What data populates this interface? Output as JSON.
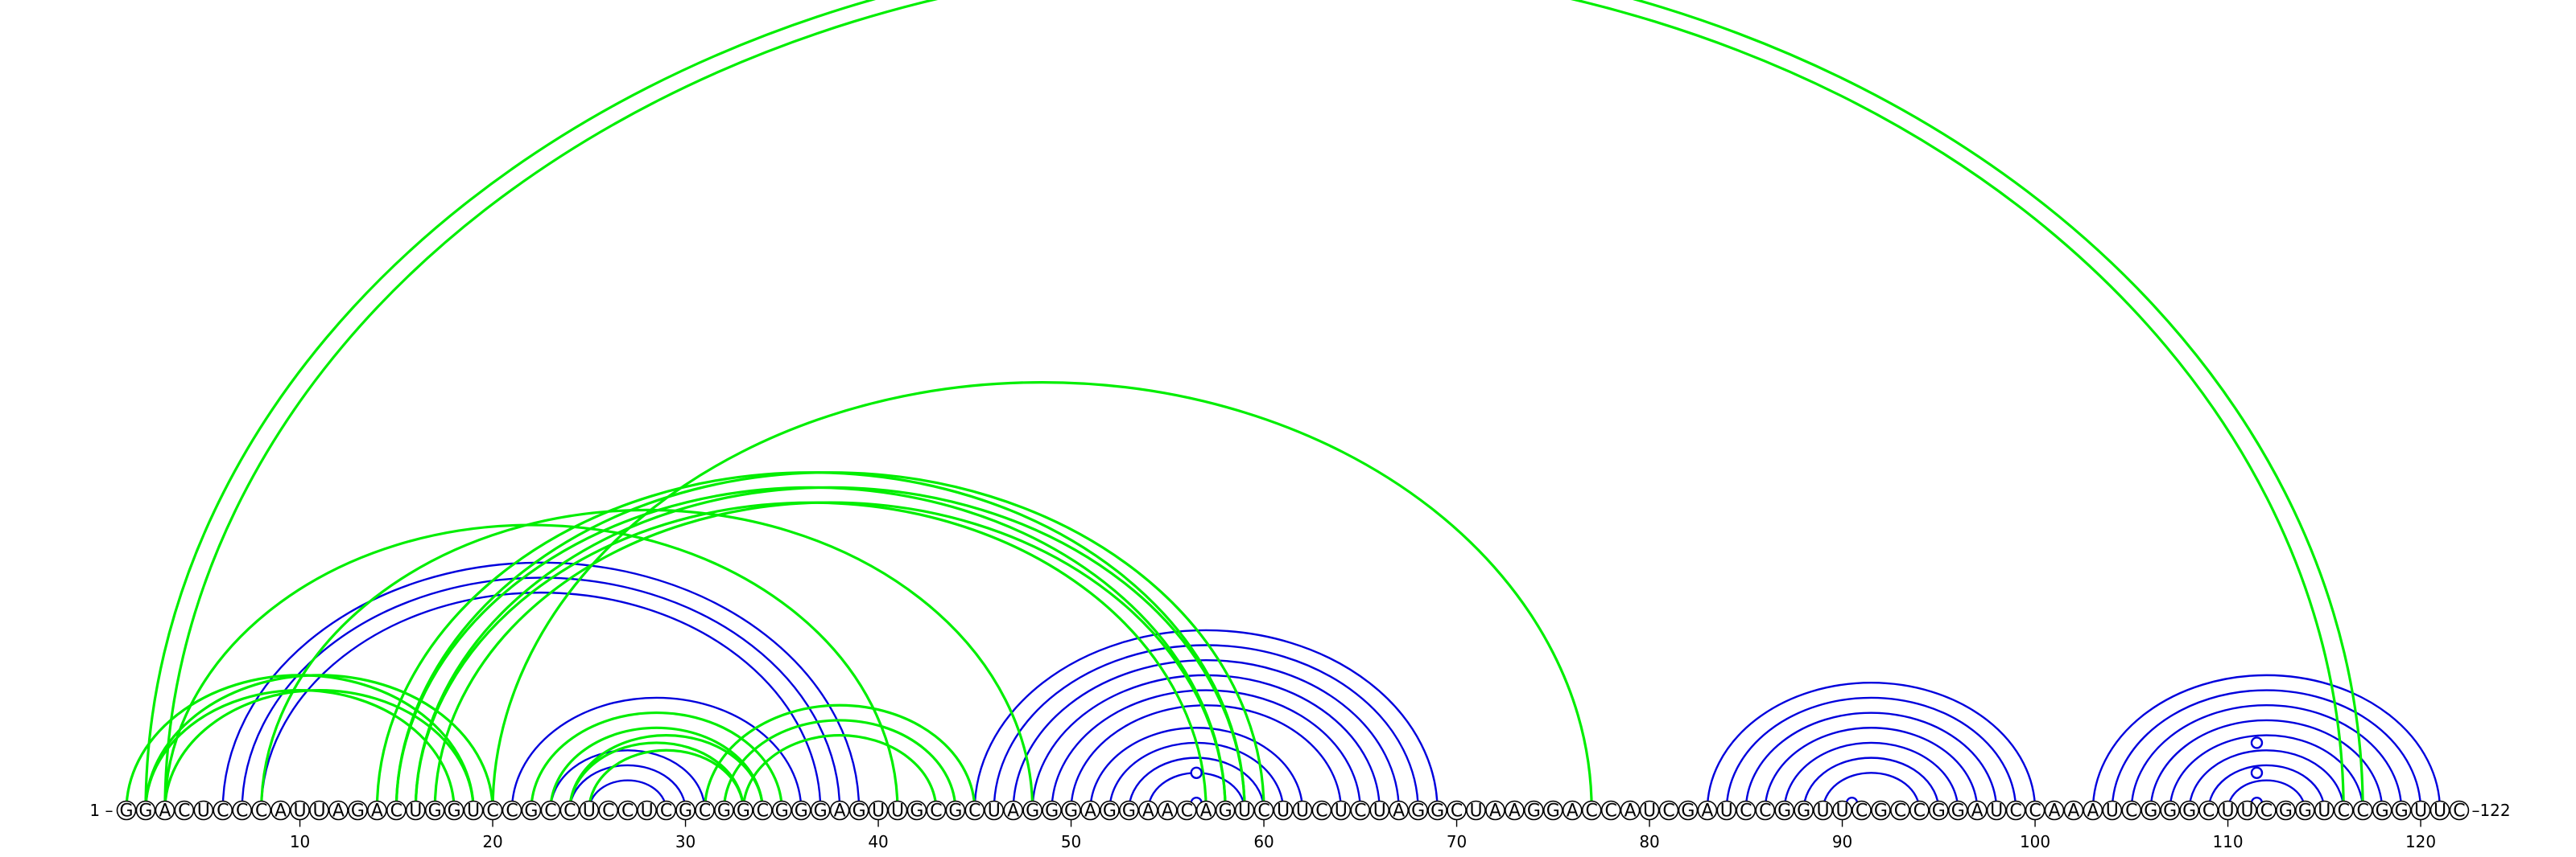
{
  "sequence": "GGACUCCCAUUAGACUGGUCCGCCUCCUCGCGGCGGGAGUUGCGCUAGGGAGGAACAGUCUUCUCUAGGCUAAGGACCAUCGAUCCGGUUCGCCGGAUCCAAAUCGGGCUUCGGUCCGGUUC",
  "labels": {
    "start": "1 –",
    "end": "–122"
  },
  "ticks": [
    "10",
    "20",
    "30",
    "40",
    "50",
    "60",
    "70",
    "80",
    "90",
    "100",
    "110",
    "120"
  ],
  "colors": {
    "secondary": "#0000dd",
    "tertiary": "#00ee00"
  },
  "helices": [
    {
      "type": "blue",
      "i": 6,
      "j": 39,
      "n": 3
    },
    {
      "type": "blue",
      "i": 21,
      "j": 36,
      "n": 3
    },
    {
      "type": "blue",
      "i": 23,
      "j": 31,
      "n": 3
    },
    {
      "type": "blue",
      "i": 45,
      "j": 69,
      "n": 6
    },
    {
      "type": "blue",
      "i": 51,
      "j": 62,
      "n": 4
    },
    {
      "type": "blue",
      "i": 83,
      "j": 100,
      "n": 7
    },
    {
      "type": "blue",
      "i": 103,
      "j": 121,
      "n": 8
    },
    {
      "type": "green",
      "i": 2,
      "j": 117,
      "n": 2
    },
    {
      "type": "green",
      "i": 1,
      "j": 19,
      "n": 2
    },
    {
      "type": "green",
      "i": 2,
      "j": 20,
      "n": 2
    },
    {
      "type": "green",
      "i": 3,
      "j": 41,
      "n": 1
    },
    {
      "type": "green",
      "i": 8,
      "j": 48,
      "n": 1
    },
    {
      "type": "green",
      "i": 14,
      "j": 59,
      "n": 3
    },
    {
      "type": "green",
      "i": 15,
      "j": 60,
      "n": 3
    },
    {
      "type": "green",
      "i": 20,
      "j": 77,
      "n": 1
    },
    {
      "type": "green",
      "i": 22,
      "j": 35,
      "n": 3
    },
    {
      "type": "green",
      "i": 31,
      "j": 45,
      "n": 3
    },
    {
      "type": "green",
      "i": 24,
      "j": 34,
      "n": 2
    }
  ],
  "gu_pairs": [
    {
      "i": 56,
      "j": 57
    },
    {
      "i": 54,
      "j": 59
    },
    {
      "i": 90,
      "j": 91
    },
    {
      "i": 111,
      "j": 112
    },
    {
      "i": 109,
      "j": 114
    },
    {
      "i": 107,
      "j": 116
    }
  ]
}
